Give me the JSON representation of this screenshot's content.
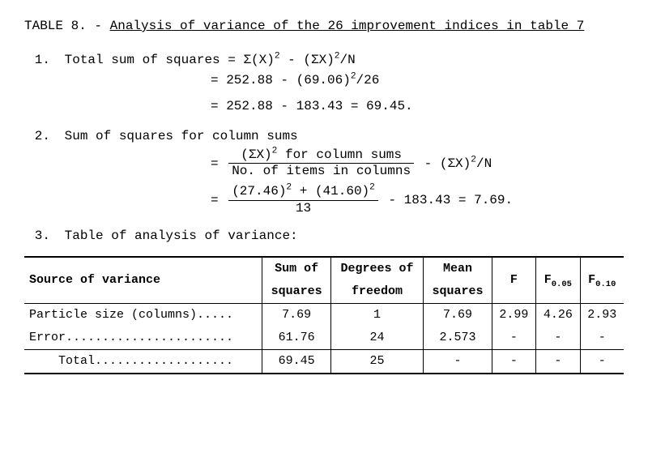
{
  "title": {
    "prefix": "TABLE 8. - ",
    "underlined": "Analysis of variance of the 26 improvement indices in table 7"
  },
  "items": [
    {
      "number": "1.",
      "label": "Total sum of squares = Σ(X)",
      "sup1": "2",
      "mid1": " - (ΣX)",
      "sup2": "2",
      "tail1": "/N",
      "line2a": "= 252.88 - (69.06)",
      "line2sup": "2",
      "line2b": "/26",
      "line3": "= 252.88 - 183.43 = 69.45."
    },
    {
      "number": "2.",
      "label": "Sum of squares for column sums",
      "frac1_num_a": "(ΣX)",
      "frac1_num_sup": "2",
      "frac1_num_b": " for column sums",
      "frac1_den": "No. of items in columns",
      "after1a": " - (ΣX)",
      "after1sup": "2",
      "after1b": "/N",
      "frac2_num_a": "(27.46)",
      "frac2_num_sup1": "2",
      "frac2_num_b": " + (41.60)",
      "frac2_num_sup2": "2",
      "frac2_den": "13",
      "after2": " - 183.43 = 7.69."
    },
    {
      "number": "3.",
      "label": "Table of analysis of variance:"
    }
  ],
  "table": {
    "headers": {
      "c1": "Source of variance",
      "c2a": "Sum of",
      "c2b": "squares",
      "c3a": "Degrees of",
      "c3b": "freedom",
      "c4a": "Mean",
      "c4b": "squares",
      "c5": "F",
      "c6": "F",
      "c6sub": "0.05",
      "c7": "F",
      "c7sub": "0.10"
    },
    "rows": [
      {
        "src": "Particle size (columns).....",
        "ss": "7.69",
        "df": "1",
        "ms": "7.69",
        "f": "2.99",
        "f05": "4.26",
        "f10": "2.93",
        "total": false
      },
      {
        "src": "Error.......................",
        "ss": "61.76",
        "df": "24",
        "ms": "2.573",
        "f": "-",
        "f05": "-",
        "f10": "-",
        "total": false
      },
      {
        "src": "    Total...................",
        "ss": "69.45",
        "df": "25",
        "ms": "-",
        "f": "-",
        "f05": "-",
        "f10": "-",
        "total": true
      }
    ]
  }
}
